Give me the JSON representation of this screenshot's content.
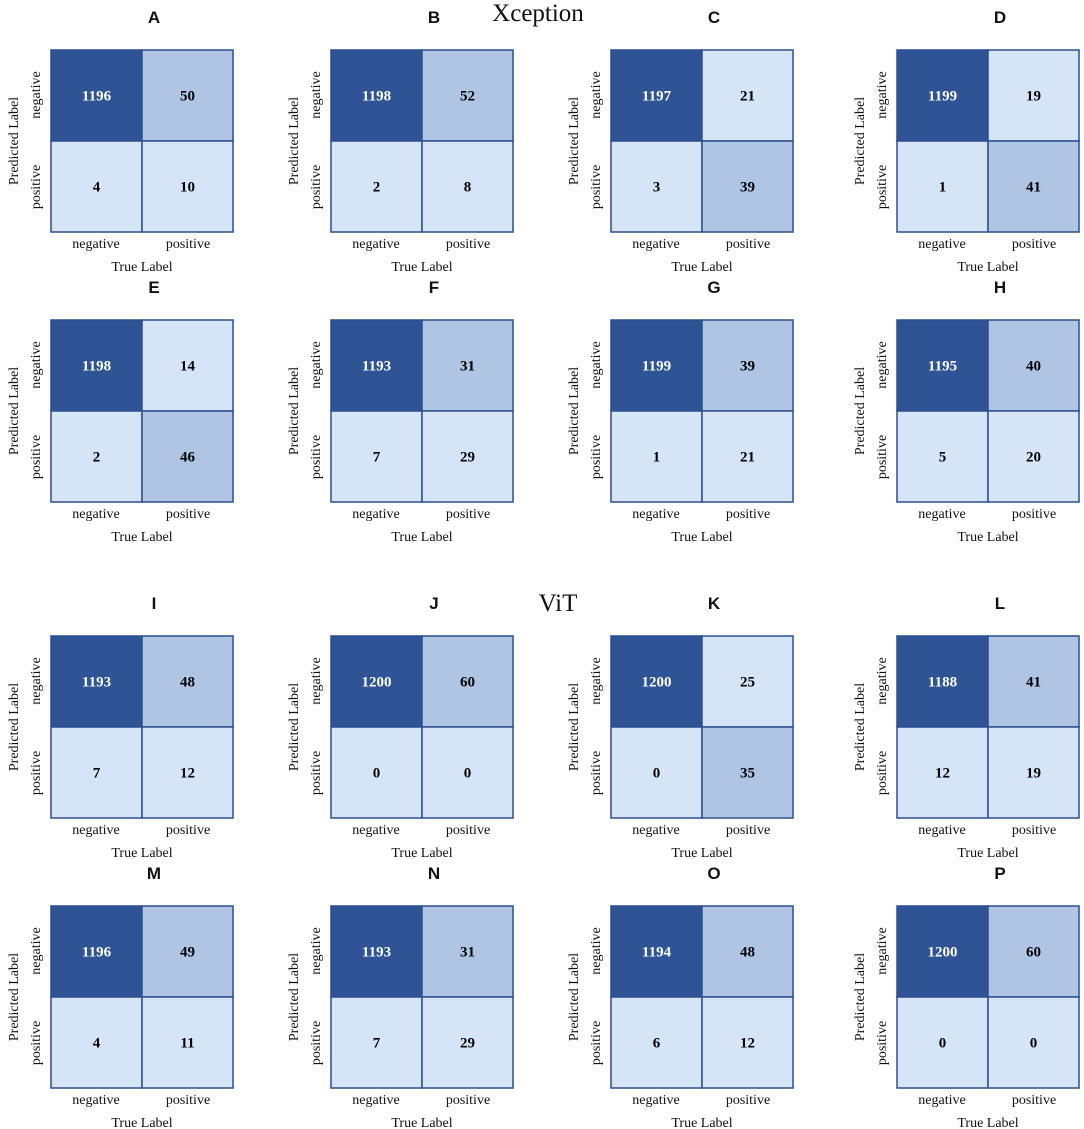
{
  "chart_data": {
    "type": "heatmap",
    "group_titles": [
      "Xception",
      "ViT"
    ],
    "row_tick_labels": [
      "negative",
      "positive"
    ],
    "col_tick_labels": [
      "negative",
      "positive"
    ],
    "xlabel": "True Label",
    "ylabel": "Predicted Label",
    "colors": {
      "max": "#2e5496",
      "mid": "#b0c4e4",
      "low": "#d6e4f7",
      "light_text": "#ffffff",
      "dark_text": "#000000",
      "border": "#2b4f8f"
    },
    "panels": [
      {
        "label": "A",
        "group": "Xception",
        "matrix": [
          [
            1196,
            50
          ],
          [
            4,
            10
          ]
        ]
      },
      {
        "label": "B",
        "group": "Xception",
        "matrix": [
          [
            1198,
            52
          ],
          [
            2,
            8
          ]
        ]
      },
      {
        "label": "C",
        "group": "Xception",
        "matrix": [
          [
            1197,
            21
          ],
          [
            3,
            39
          ]
        ]
      },
      {
        "label": "D",
        "group": "Xception",
        "matrix": [
          [
            1199,
            19
          ],
          [
            1,
            41
          ]
        ]
      },
      {
        "label": "E",
        "group": "Xception",
        "matrix": [
          [
            1198,
            14
          ],
          [
            2,
            46
          ]
        ]
      },
      {
        "label": "F",
        "group": "Xception",
        "matrix": [
          [
            1193,
            31
          ],
          [
            7,
            29
          ]
        ]
      },
      {
        "label": "G",
        "group": "Xception",
        "matrix": [
          [
            1199,
            39
          ],
          [
            1,
            21
          ]
        ]
      },
      {
        "label": "H",
        "group": "Xception",
        "matrix": [
          [
            1195,
            40
          ],
          [
            5,
            20
          ]
        ]
      },
      {
        "label": "I",
        "group": "ViT",
        "matrix": [
          [
            1193,
            48
          ],
          [
            7,
            12
          ]
        ]
      },
      {
        "label": "J",
        "group": "ViT",
        "matrix": [
          [
            1200,
            60
          ],
          [
            0,
            0
          ]
        ]
      },
      {
        "label": "K",
        "group": "ViT",
        "matrix": [
          [
            1200,
            25
          ],
          [
            0,
            35
          ]
        ]
      },
      {
        "label": "L",
        "group": "ViT",
        "matrix": [
          [
            1188,
            41
          ],
          [
            12,
            19
          ]
        ]
      },
      {
        "label": "M",
        "group": "ViT",
        "matrix": [
          [
            1196,
            49
          ],
          [
            4,
            11
          ]
        ]
      },
      {
        "label": "N",
        "group": "ViT",
        "matrix": [
          [
            1193,
            31
          ],
          [
            7,
            29
          ]
        ]
      },
      {
        "label": "O",
        "group": "ViT",
        "matrix": [
          [
            1194,
            48
          ],
          [
            6,
            12
          ]
        ]
      },
      {
        "label": "P",
        "group": "ViT",
        "matrix": [
          [
            1200,
            60
          ],
          [
            0,
            0
          ]
        ]
      }
    ]
  }
}
